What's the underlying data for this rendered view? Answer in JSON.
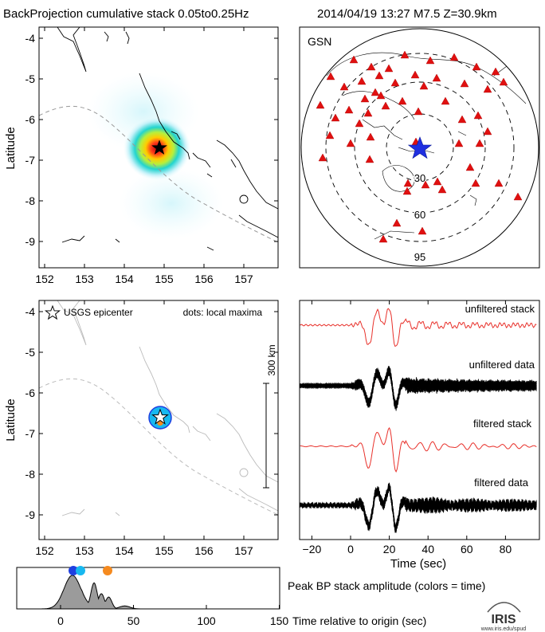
{
  "header": {
    "title": "BackProjection cumulative stack 0.05to0.25Hz",
    "event": "2014/04/19 13:27   M7.5  Z=30.9km"
  },
  "colors": {
    "stack_line": "#e8302a",
    "data_line": "#000000",
    "coast": "#000000",
    "coast_gray": "#bbbbbb",
    "trench": "#999999",
    "station": "#e01010",
    "epicenter_blue": "#1f2fe0"
  },
  "map_top": {
    "ylabel": "Latitude",
    "lat_ticks": [
      "-4",
      "-5",
      "-6",
      "-7",
      "-8",
      "-9"
    ],
    "lon_ticks": [
      "152",
      "153",
      "154",
      "155",
      "156",
      "157"
    ]
  },
  "map_bottom": {
    "ylabel": "Latitude",
    "lat_ticks": [
      "-4",
      "-5",
      "-6",
      "-7",
      "-8",
      "-9"
    ],
    "lon_ticks": [
      "152",
      "153",
      "154",
      "155",
      "156",
      "157"
    ],
    "legend_epicenter": "USGS epicenter",
    "legend_dots": "dots: local maxima",
    "scale_label": "300 km"
  },
  "globe": {
    "label": "GSN",
    "rings": [
      "30",
      "60",
      "95"
    ],
    "station_count": 54
  },
  "traces": {
    "labels": {
      "unfiltered_stack": "unfiltered stack",
      "unfiltered_data": "unfiltered data",
      "filtered_stack": "filtered stack",
      "filtered_data": "filtered data"
    },
    "x_ticks": [
      "−20",
      "0",
      "20",
      "40",
      "60",
      "80"
    ],
    "xlabel": "Time (sec)"
  },
  "peak": {
    "x_ticks": [
      "0",
      "50",
      "100",
      "150"
    ],
    "xlabel": "Time relative to origin (sec)",
    "title": "Peak BP stack amplitude (colors = time)",
    "dot_colors": [
      "#1f3fe0",
      "#17b8f0",
      "#f58a1f"
    ]
  },
  "logo": {
    "text": "IRIS",
    "url_text": "www.iris.edu/spud"
  }
}
